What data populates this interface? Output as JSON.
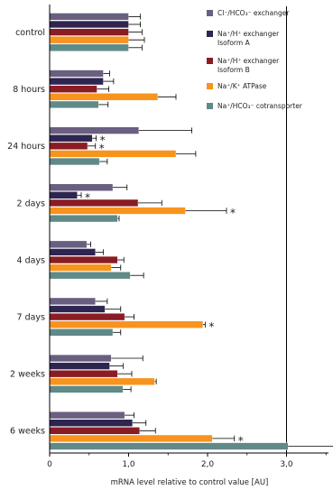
{
  "chart_data": {
    "type": "bar",
    "orientation": "horizontal",
    "xlabel": "mRNA level relative to control value [AU]",
    "xlim": [
      0,
      3.6
    ],
    "xticks": [
      0,
      1,
      2,
      3
    ],
    "xtick_labels": [
      "0",
      "1,0",
      "2,0",
      "3,0"
    ],
    "categories": [
      "control",
      "8 hours",
      "24 hours",
      "2 days",
      "4 days",
      "7 days",
      "2 weeks",
      "6 weeks"
    ],
    "legend_position": "top-right",
    "series": [
      {
        "name": "Cl⁻/HCO₃⁻ exchanger",
        "color": "#6a5f80",
        "values": [
          1.0,
          0.68,
          1.13,
          0.8,
          0.47,
          0.58,
          0.78,
          0.95
        ],
        "errors": [
          0.15,
          0.08,
          0.67,
          0.18,
          0.05,
          0.15,
          0.4,
          0.12
        ],
        "significant": [
          false,
          false,
          false,
          false,
          false,
          false,
          false,
          false
        ]
      },
      {
        "name": "Na⁺/H⁺ exchanger Isoform A",
        "color": "#2e2550",
        "values": [
          1.0,
          0.68,
          0.54,
          0.35,
          0.58,
          0.7,
          0.76,
          1.05
        ],
        "errors": [
          0.15,
          0.13,
          0.05,
          0.05,
          0.1,
          0.2,
          0.17,
          0.17
        ],
        "significant": [
          false,
          false,
          true,
          true,
          false,
          false,
          false,
          false
        ]
      },
      {
        "name": "Na⁺/H⁺ exchanger Isoform B",
        "color": "#8a1c24",
        "values": [
          1.0,
          0.6,
          0.48,
          1.12,
          0.86,
          0.95,
          0.86,
          1.14
        ],
        "errors": [
          0.17,
          0.15,
          0.1,
          0.3,
          0.08,
          0.12,
          0.18,
          0.2
        ],
        "significant": [
          false,
          false,
          true,
          false,
          false,
          false,
          false,
          false
        ]
      },
      {
        "name": "Na⁺/K⁺ ATPase",
        "color": "#f7941d",
        "values": [
          1.0,
          1.37,
          1.6,
          1.72,
          0.78,
          1.94,
          1.33,
          2.06
        ],
        "errors": [
          0.2,
          0.23,
          0.25,
          0.52,
          0.12,
          0.03,
          0.02,
          0.28
        ],
        "significant": [
          false,
          false,
          false,
          true,
          false,
          true,
          false,
          true
        ]
      },
      {
        "name": "Na⁺/HCO₃⁻ cotransporter",
        "color": "#5f8a88",
        "values": [
          1.0,
          0.62,
          0.63,
          0.86,
          1.02,
          0.8,
          0.93,
          3.02
        ],
        "errors": [
          0.17,
          0.12,
          0.1,
          0.02,
          0.17,
          0.1,
          0.1,
          0.6
        ],
        "significant": [
          false,
          false,
          false,
          false,
          false,
          false,
          false,
          true
        ]
      }
    ]
  }
}
